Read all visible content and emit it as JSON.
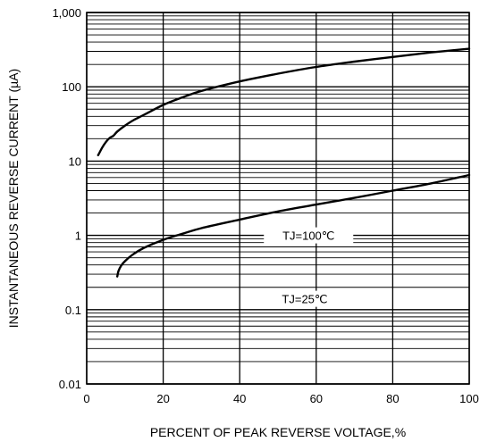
{
  "chart_data": {
    "type": "line",
    "title": "",
    "xlabel": "PERCENT OF PEAK REVERSE VOLTAGE,%",
    "ylabel": "INSTANTANEOUS REVERSE CURRENT (µA)",
    "x_scale": "linear",
    "y_scale": "log",
    "xlim": [
      0,
      100
    ],
    "ylim": [
      0.01,
      1000
    ],
    "x_ticks": [
      0,
      20,
      40,
      60,
      80,
      100
    ],
    "x_tick_labels": [
      "0",
      "20",
      "40",
      "60",
      "80",
      "100"
    ],
    "y_ticks": [
      0.01,
      0.1,
      1,
      10,
      100,
      1000
    ],
    "y_tick_labels": [
      "0.01",
      "0.1",
      "1",
      "10",
      "100",
      "1,000"
    ],
    "grid": true,
    "line_color": "#000000",
    "series": [
      {
        "name": "TJ=100℃",
        "label_at": [
          58,
          1.0
        ],
        "x": [
          3,
          4,
          5,
          6,
          7,
          8,
          10,
          12,
          15,
          20,
          25,
          30,
          40,
          50,
          60,
          70,
          80,
          90,
          100
        ],
        "y": [
          12,
          15,
          18,
          20.5,
          22,
          25,
          30,
          35,
          42,
          57,
          72,
          88,
          118,
          150,
          185,
          218,
          252,
          290,
          325
        ]
      },
      {
        "name": "TJ=25℃",
        "label_at": [
          57,
          0.14
        ],
        "x": [
          8,
          8.3,
          9,
          10,
          12,
          15,
          20,
          25,
          30,
          40,
          50,
          60,
          70,
          80,
          90,
          100
        ],
        "y": [
          0.28,
          0.33,
          0.39,
          0.45,
          0.55,
          0.68,
          0.87,
          1.05,
          1.25,
          1.63,
          2.1,
          2.6,
          3.2,
          4.0,
          5.0,
          6.5
        ]
      }
    ]
  }
}
